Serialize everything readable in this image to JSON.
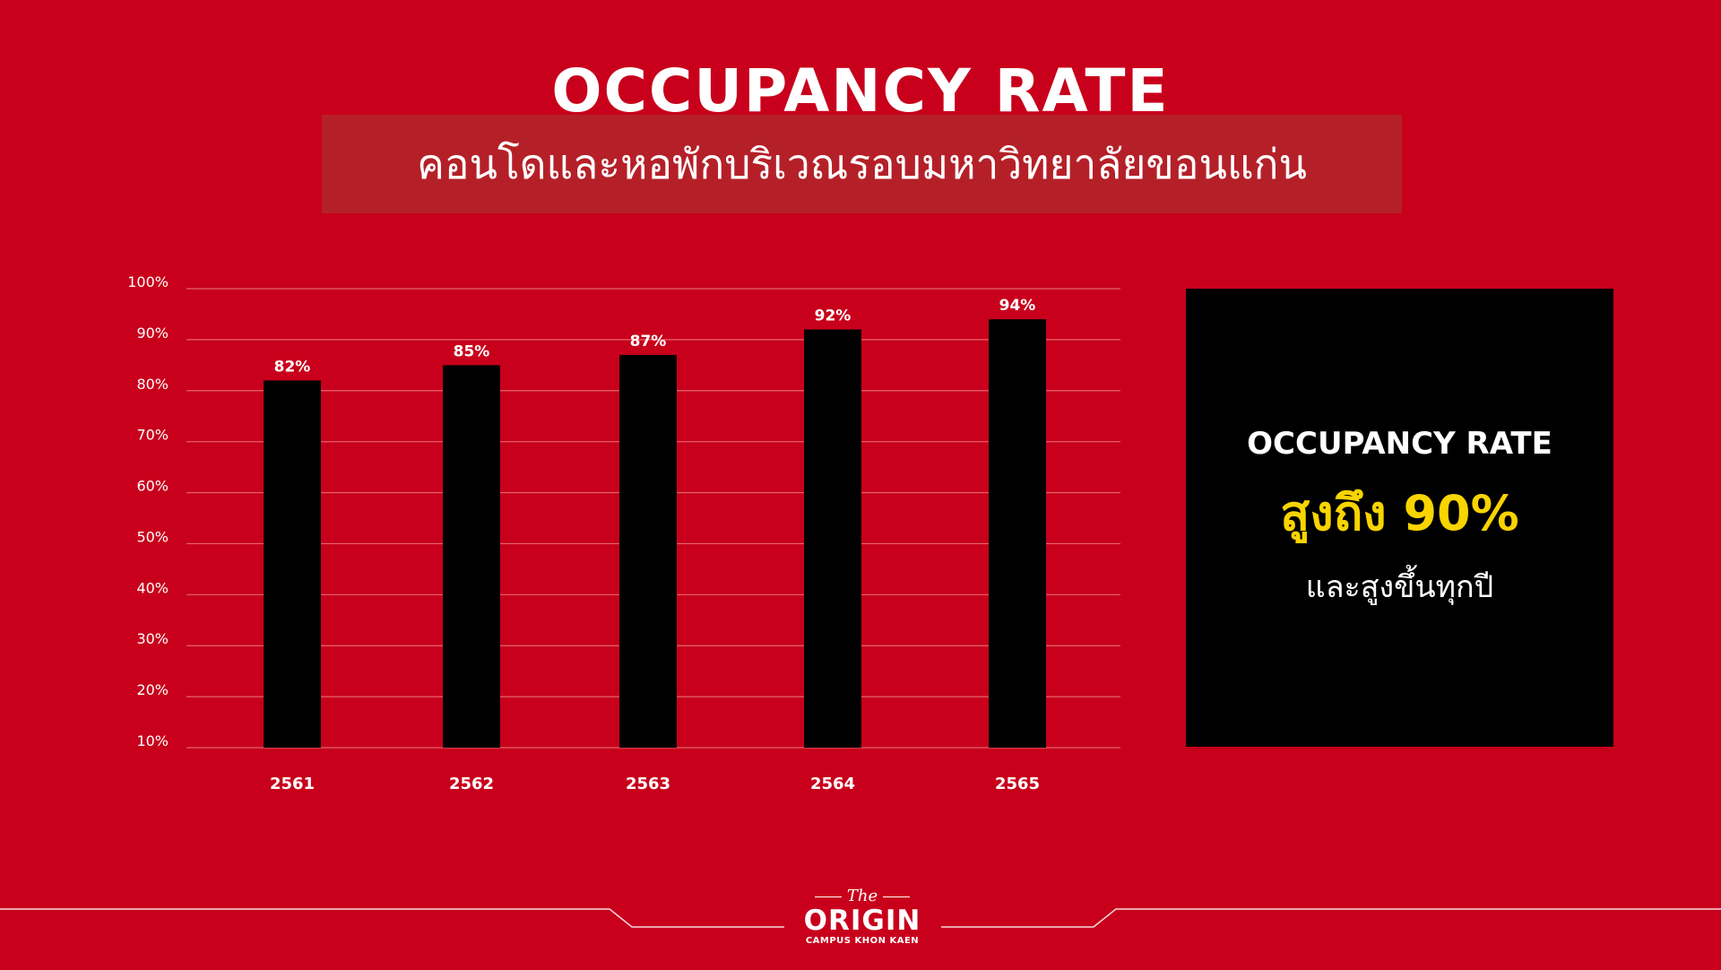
{
  "header": {
    "title": "OCCUPANCY RATE",
    "subtitle": "คอนโดและหอพักบริเวณรอบมหาวิทยาลัยขอนแก่น"
  },
  "chart_data": {
    "type": "bar",
    "categories": [
      "2561",
      "2562",
      "2563",
      "2564",
      "2565"
    ],
    "values": [
      82,
      85,
      87,
      92,
      94
    ],
    "value_labels": [
      "82%",
      "85%",
      "87%",
      "92%",
      "94%"
    ],
    "yticks": [
      "10%",
      "20%",
      "30%",
      "40%",
      "50%",
      "60%",
      "70%",
      "80%",
      "90%",
      "100%"
    ],
    "ylim": [
      10,
      100
    ],
    "grid": true,
    "bar_color": "#000000"
  },
  "callout": {
    "title": "OCCUPANCY RATE",
    "highlight": "สูงถึง 90%",
    "note": "และสูงขึ้นทุกปี",
    "highlight_color": "#f8d400"
  },
  "footer": {
    "logo_the": "The",
    "logo_main": "ORIGIN",
    "logo_sub": "CAMPUS KHON KAEN"
  },
  "colors": {
    "background": "#c8001c",
    "band": "#b52028"
  }
}
